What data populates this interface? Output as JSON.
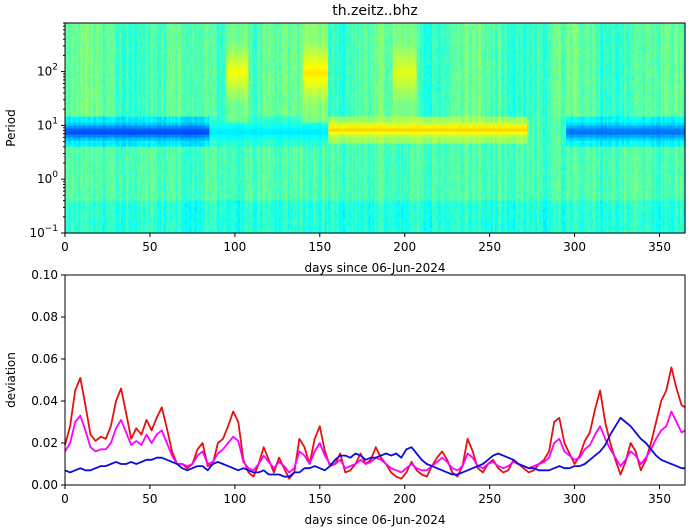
{
  "chart_data": [
    {
      "type": "heatmap",
      "title": "th.zeitz..bhz",
      "xlabel": "days since 06-Jun-2024",
      "ylabel": "Period",
      "xlim": [
        0,
        365
      ],
      "ylim": [
        0.1,
        800
      ],
      "y_scale": "log",
      "x_ticks": [
        0,
        50,
        100,
        150,
        200,
        250,
        300,
        350
      ],
      "y_ticks": [
        {
          "value": 0.1,
          "base": "10",
          "exp": "−1"
        },
        {
          "value": 1,
          "base": "10",
          "exp": "0"
        },
        {
          "value": 10,
          "base": "10",
          "exp": "1"
        },
        {
          "value": 100,
          "base": "10",
          "exp": "2"
        }
      ],
      "colormap": "jet",
      "features": [
        {
          "day_start": 0,
          "day_end": 85,
          "period_low": 4,
          "period_high": 15,
          "level": 0.18
        },
        {
          "day_start": 295,
          "day_end": 365,
          "period_low": 4,
          "period_high": 15,
          "level": 0.22
        },
        {
          "day_start": 85,
          "day_end": 155,
          "period_low": 4,
          "period_high": 15,
          "level": 0.35
        },
        {
          "day_start": 155,
          "day_end": 272,
          "period_low": 5,
          "period_high": 15,
          "level": 0.68
        },
        {
          "day_start": 95,
          "day_end": 108,
          "period_low": 12,
          "period_high": 800,
          "level": 0.62
        },
        {
          "day_start": 140,
          "day_end": 155,
          "period_low": 12,
          "period_high": 800,
          "level": 0.65
        },
        {
          "day_start": 193,
          "day_end": 207,
          "period_low": 12,
          "period_high": 800,
          "level": 0.6
        }
      ]
    },
    {
      "type": "line",
      "xlabel": "days since 06-Jun-2024",
      "ylabel": "deviation",
      "xlim": [
        0,
        365
      ],
      "ylim": [
        0,
        0.1
      ],
      "x_ticks": [
        0,
        50,
        100,
        150,
        200,
        250,
        300,
        350
      ],
      "y_ticks": [
        "0.00",
        "0.02",
        "0.04",
        "0.06",
        "0.08",
        "0.10"
      ],
      "series": [
        {
          "color": "#e41111",
          "x": [
            0,
            3,
            6,
            9,
            12,
            15,
            18,
            21,
            24,
            27,
            30,
            33,
            36,
            39,
            42,
            45,
            48,
            51,
            54,
            57,
            60,
            63,
            66,
            69,
            72,
            75,
            78,
            81,
            84,
            87,
            90,
            93,
            96,
            99,
            102,
            105,
            108,
            111,
            114,
            117,
            120,
            123,
            126,
            129,
            132,
            135,
            138,
            141,
            144,
            147,
            150,
            153,
            156,
            159,
            162,
            165,
            168,
            171,
            174,
            177,
            180,
            183,
            186,
            189,
            192,
            195,
            198,
            201,
            204,
            207,
            210,
            213,
            216,
            219,
            222,
            225,
            228,
            231,
            234,
            237,
            240,
            243,
            246,
            249,
            252,
            255,
            258,
            261,
            264,
            267,
            270,
            273,
            276,
            279,
            282,
            285,
            288,
            291,
            294,
            297,
            300,
            303,
            306,
            309,
            312,
            315,
            318,
            321,
            324,
            327,
            330,
            333,
            336,
            339,
            342,
            345,
            348,
            351,
            354,
            357,
            360,
            363,
            365
          ],
          "values": [
            0.019,
            0.028,
            0.045,
            0.051,
            0.038,
            0.024,
            0.021,
            0.023,
            0.022,
            0.028,
            0.04,
            0.046,
            0.034,
            0.022,
            0.027,
            0.024,
            0.031,
            0.026,
            0.032,
            0.037,
            0.027,
            0.016,
            0.01,
            0.01,
            0.008,
            0.01,
            0.017,
            0.02,
            0.009,
            0.01,
            0.02,
            0.022,
            0.028,
            0.035,
            0.03,
            0.012,
            0.006,
            0.004,
            0.01,
            0.018,
            0.012,
            0.006,
            0.013,
            0.008,
            0.003,
            0.006,
            0.022,
            0.018,
            0.01,
            0.022,
            0.028,
            0.016,
            0.009,
            0.01,
            0.015,
            0.006,
            0.007,
            0.01,
            0.015,
            0.01,
            0.012,
            0.018,
            0.013,
            0.01,
            0.006,
            0.004,
            0.003,
            0.006,
            0.011,
            0.007,
            0.005,
            0.004,
            0.009,
            0.013,
            0.016,
            0.012,
            0.006,
            0.004,
            0.009,
            0.022,
            0.016,
            0.008,
            0.006,
            0.01,
            0.012,
            0.008,
            0.006,
            0.007,
            0.012,
            0.01,
            0.008,
            0.006,
            0.007,
            0.01,
            0.012,
            0.016,
            0.03,
            0.032,
            0.02,
            0.015,
            0.01,
            0.014,
            0.021,
            0.025,
            0.036,
            0.045,
            0.03,
            0.02,
            0.012,
            0.005,
            0.011,
            0.02,
            0.016,
            0.007,
            0.012,
            0.02,
            0.03,
            0.04,
            0.045,
            0.056,
            0.046,
            0.038,
            0.037
          ]
        },
        {
          "color": "#ff00ff",
          "x": [
            0,
            3,
            6,
            9,
            12,
            15,
            18,
            21,
            24,
            27,
            30,
            33,
            36,
            39,
            42,
            45,
            48,
            51,
            54,
            57,
            60,
            63,
            66,
            69,
            72,
            75,
            78,
            81,
            84,
            87,
            90,
            93,
            96,
            99,
            102,
            105,
            108,
            111,
            114,
            117,
            120,
            123,
            126,
            129,
            132,
            135,
            138,
            141,
            144,
            147,
            150,
            153,
            156,
            159,
            162,
            165,
            168,
            171,
            174,
            177,
            180,
            183,
            186,
            189,
            192,
            195,
            198,
            201,
            204,
            207,
            210,
            213,
            216,
            219,
            222,
            225,
            228,
            231,
            234,
            237,
            240,
            243,
            246,
            249,
            252,
            255,
            258,
            261,
            264,
            267,
            270,
            273,
            276,
            279,
            282,
            285,
            288,
            291,
            294,
            297,
            300,
            303,
            306,
            309,
            312,
            315,
            318,
            321,
            324,
            327,
            330,
            333,
            336,
            339,
            342,
            345,
            348,
            351,
            354,
            357,
            360,
            363,
            365
          ],
          "values": [
            0.016,
            0.02,
            0.03,
            0.033,
            0.026,
            0.018,
            0.016,
            0.017,
            0.017,
            0.02,
            0.027,
            0.031,
            0.025,
            0.019,
            0.021,
            0.019,
            0.024,
            0.02,
            0.024,
            0.026,
            0.02,
            0.014,
            0.01,
            0.01,
            0.009,
            0.01,
            0.014,
            0.016,
            0.01,
            0.011,
            0.015,
            0.017,
            0.02,
            0.023,
            0.021,
            0.011,
            0.008,
            0.007,
            0.01,
            0.014,
            0.011,
            0.008,
            0.011,
            0.009,
            0.006,
            0.008,
            0.016,
            0.014,
            0.01,
            0.016,
            0.02,
            0.014,
            0.01,
            0.01,
            0.012,
            0.008,
            0.009,
            0.01,
            0.012,
            0.01,
            0.011,
            0.013,
            0.012,
            0.01,
            0.008,
            0.007,
            0.006,
            0.008,
            0.01,
            0.008,
            0.007,
            0.007,
            0.009,
            0.011,
            0.013,
            0.011,
            0.008,
            0.007,
            0.009,
            0.015,
            0.013,
            0.009,
            0.008,
            0.01,
            0.011,
            0.009,
            0.008,
            0.009,
            0.011,
            0.01,
            0.009,
            0.008,
            0.009,
            0.01,
            0.011,
            0.013,
            0.02,
            0.022,
            0.016,
            0.014,
            0.012,
            0.013,
            0.017,
            0.019,
            0.024,
            0.028,
            0.022,
            0.017,
            0.013,
            0.009,
            0.012,
            0.016,
            0.014,
            0.01,
            0.013,
            0.017,
            0.022,
            0.026,
            0.028,
            0.035,
            0.03,
            0.025,
            0.026
          ]
        },
        {
          "color": "#0a0adf",
          "x": [
            0,
            3,
            6,
            9,
            12,
            15,
            18,
            21,
            24,
            27,
            30,
            33,
            36,
            39,
            42,
            45,
            48,
            51,
            54,
            57,
            60,
            63,
            66,
            69,
            72,
            75,
            78,
            81,
            84,
            87,
            90,
            93,
            96,
            99,
            102,
            105,
            108,
            111,
            114,
            117,
            120,
            123,
            126,
            129,
            132,
            135,
            138,
            141,
            144,
            147,
            150,
            153,
            156,
            159,
            162,
            165,
            168,
            171,
            174,
            177,
            180,
            183,
            186,
            189,
            192,
            195,
            198,
            201,
            204,
            207,
            210,
            213,
            216,
            219,
            222,
            225,
            228,
            231,
            234,
            237,
            240,
            243,
            246,
            249,
            252,
            255,
            258,
            261,
            264,
            267,
            270,
            273,
            276,
            279,
            282,
            285,
            288,
            291,
            294,
            297,
            300,
            303,
            306,
            309,
            312,
            315,
            318,
            321,
            324,
            327,
            330,
            333,
            336,
            339,
            342,
            345,
            348,
            351,
            354,
            357,
            360,
            363,
            365
          ],
          "values": [
            0.007,
            0.006,
            0.007,
            0.008,
            0.007,
            0.007,
            0.008,
            0.009,
            0.009,
            0.01,
            0.011,
            0.01,
            0.01,
            0.011,
            0.01,
            0.011,
            0.012,
            0.012,
            0.013,
            0.013,
            0.012,
            0.011,
            0.01,
            0.008,
            0.007,
            0.008,
            0.009,
            0.009,
            0.007,
            0.01,
            0.011,
            0.01,
            0.009,
            0.008,
            0.007,
            0.008,
            0.007,
            0.006,
            0.006,
            0.007,
            0.005,
            0.005,
            0.005,
            0.004,
            0.004,
            0.006,
            0.006,
            0.008,
            0.008,
            0.009,
            0.008,
            0.007,
            0.009,
            0.012,
            0.014,
            0.014,
            0.013,
            0.015,
            0.014,
            0.012,
            0.013,
            0.013,
            0.014,
            0.015,
            0.014,
            0.015,
            0.013,
            0.017,
            0.018,
            0.015,
            0.012,
            0.01,
            0.009,
            0.008,
            0.007,
            0.006,
            0.005,
            0.005,
            0.006,
            0.007,
            0.008,
            0.009,
            0.01,
            0.012,
            0.014,
            0.015,
            0.014,
            0.013,
            0.012,
            0.01,
            0.009,
            0.008,
            0.008,
            0.007,
            0.007,
            0.007,
            0.008,
            0.009,
            0.008,
            0.008,
            0.009,
            0.009,
            0.01,
            0.012,
            0.014,
            0.016,
            0.019,
            0.024,
            0.028,
            0.032,
            0.03,
            0.028,
            0.025,
            0.022,
            0.02,
            0.017,
            0.014,
            0.012,
            0.011,
            0.01,
            0.009,
            0.008,
            0.008
          ]
        }
      ]
    }
  ]
}
